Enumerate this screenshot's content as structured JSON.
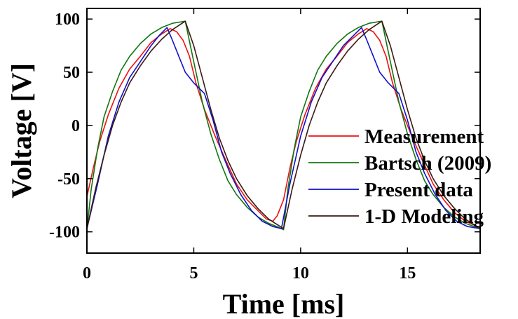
{
  "chart_data": {
    "type": "line",
    "title": "",
    "xlabel": "Time [ms]",
    "ylabel": "Voltage [V]",
    "xlim": [
      0,
      18.4
    ],
    "ylim": [
      -120,
      110
    ],
    "x_ticks": [
      0,
      5,
      10,
      15
    ],
    "y_ticks": [
      -100,
      -50,
      0,
      50,
      100
    ],
    "x_tick_labels": [
      "0",
      "5",
      "10",
      "15"
    ],
    "y_tick_labels": [
      "-100",
      "-50",
      "0",
      "50",
      "100"
    ],
    "grid": false,
    "legend_position": "right",
    "series": [
      {
        "name": "Measurement",
        "color": "#ee1111",
        "points": [
          [
            0,
            -67
          ],
          [
            0.3,
            -40
          ],
          [
            0.6,
            -15
          ],
          [
            1.0,
            10
          ],
          [
            1.5,
            35
          ],
          [
            2.0,
            53
          ],
          [
            2.5,
            65
          ],
          [
            3.0,
            78
          ],
          [
            3.5,
            86
          ],
          [
            3.9,
            91
          ],
          [
            4.2,
            88
          ],
          [
            4.5,
            80
          ],
          [
            4.8,
            65
          ],
          [
            5.1,
            40
          ],
          [
            5.5,
            15
          ],
          [
            6.0,
            -10
          ],
          [
            6.5,
            -33
          ],
          [
            7.0,
            -55
          ],
          [
            7.5,
            -70
          ],
          [
            8.0,
            -80
          ],
          [
            8.4,
            -88
          ],
          [
            8.7,
            -90
          ],
          [
            8.9,
            -85
          ],
          [
            9.2,
            -70
          ],
          [
            9.5,
            -40
          ],
          [
            9.8,
            -15
          ],
          [
            10.2,
            10
          ],
          [
            10.7,
            35
          ],
          [
            11.2,
            53
          ],
          [
            11.7,
            65
          ],
          [
            12.2,
            78
          ],
          [
            12.7,
            86
          ],
          [
            13.1,
            91
          ],
          [
            13.4,
            88
          ],
          [
            13.7,
            80
          ],
          [
            14.0,
            65
          ],
          [
            14.3,
            40
          ],
          [
            14.7,
            15
          ],
          [
            15.2,
            -10
          ],
          [
            15.7,
            -33
          ],
          [
            16.2,
            -55
          ],
          [
            16.7,
            -70
          ],
          [
            17.2,
            -82
          ],
          [
            17.7,
            -90
          ],
          [
            18.4,
            -96
          ]
        ]
      },
      {
        "name": "Bartsch (2009)",
        "color": "#117711",
        "points": [
          [
            0,
            -98
          ],
          [
            0.2,
            -60
          ],
          [
            0.5,
            -22
          ],
          [
            0.8,
            8
          ],
          [
            1.2,
            32
          ],
          [
            1.6,
            52
          ],
          [
            2.0,
            65
          ],
          [
            2.5,
            77
          ],
          [
            3.0,
            86
          ],
          [
            3.5,
            92
          ],
          [
            4.0,
            96
          ],
          [
            4.6,
            98
          ],
          [
            5.0,
            60
          ],
          [
            5.4,
            22
          ],
          [
            5.8,
            -8
          ],
          [
            6.2,
            -32
          ],
          [
            6.6,
            -52
          ],
          [
            7.0,
            -65
          ],
          [
            7.5,
            -77
          ],
          [
            8.0,
            -86
          ],
          [
            8.5,
            -92
          ],
          [
            9.0,
            -96
          ],
          [
            9.2,
            -98
          ],
          [
            9.4,
            -60
          ],
          [
            9.7,
            -22
          ],
          [
            10.0,
            8
          ],
          [
            10.4,
            32
          ],
          [
            10.8,
            52
          ],
          [
            11.2,
            65
          ],
          [
            11.7,
            77
          ],
          [
            12.2,
            86
          ],
          [
            12.7,
            92
          ],
          [
            13.2,
            96
          ],
          [
            13.8,
            98
          ],
          [
            14.2,
            60
          ],
          [
            14.6,
            22
          ],
          [
            15.0,
            -8
          ],
          [
            15.4,
            -32
          ],
          [
            15.8,
            -52
          ],
          [
            16.2,
            -65
          ],
          [
            16.7,
            -77
          ],
          [
            17.2,
            -86
          ],
          [
            17.7,
            -92
          ],
          [
            18.4,
            -97
          ]
        ]
      },
      {
        "name": "Present data",
        "color": "#1111cc",
        "points": [
          [
            0,
            -97
          ],
          [
            0.5,
            -55
          ],
          [
            1.0,
            -10
          ],
          [
            1.5,
            22
          ],
          [
            2.0,
            45
          ],
          [
            2.5,
            60
          ],
          [
            3.0,
            75
          ],
          [
            3.4,
            85
          ],
          [
            3.75,
            92
          ],
          [
            4.0,
            80
          ],
          [
            4.3,
            65
          ],
          [
            4.6,
            50
          ],
          [
            5.0,
            40
          ],
          [
            5.5,
            30
          ],
          [
            5.9,
            5
          ],
          [
            6.3,
            -25
          ],
          [
            6.7,
            -45
          ],
          [
            7.2,
            -65
          ],
          [
            7.7,
            -80
          ],
          [
            8.2,
            -90
          ],
          [
            8.7,
            -95
          ],
          [
            9.1,
            -97
          ],
          [
            9.5,
            -55
          ],
          [
            10.0,
            -10
          ],
          [
            10.5,
            22
          ],
          [
            11.0,
            45
          ],
          [
            11.5,
            60
          ],
          [
            12.0,
            75
          ],
          [
            12.5,
            85
          ],
          [
            12.85,
            92
          ],
          [
            13.1,
            80
          ],
          [
            13.4,
            65
          ],
          [
            13.7,
            50
          ],
          [
            14.1,
            40
          ],
          [
            14.6,
            30
          ],
          [
            15.0,
            5
          ],
          [
            15.4,
            -25
          ],
          [
            15.8,
            -45
          ],
          [
            16.3,
            -65
          ],
          [
            16.8,
            -80
          ],
          [
            17.3,
            -90
          ],
          [
            17.8,
            -95
          ],
          [
            18.4,
            -97
          ]
        ]
      },
      {
        "name": "1-D Modeling",
        "color": "#3a1a12",
        "points": [
          [
            0,
            -97
          ],
          [
            0.4,
            -60
          ],
          [
            0.8,
            -28
          ],
          [
            1.2,
            0
          ],
          [
            1.6,
            22
          ],
          [
            2.0,
            40
          ],
          [
            2.5,
            56
          ],
          [
            3.0,
            70
          ],
          [
            3.5,
            81
          ],
          [
            4.0,
            90
          ],
          [
            4.6,
            98
          ],
          [
            5.0,
            75
          ],
          [
            5.4,
            45
          ],
          [
            5.8,
            15
          ],
          [
            6.2,
            -12
          ],
          [
            6.6,
            -33
          ],
          [
            7.0,
            -50
          ],
          [
            7.5,
            -66
          ],
          [
            8.0,
            -78
          ],
          [
            8.5,
            -88
          ],
          [
            9.2,
            -97
          ],
          [
            9.6,
            -60
          ],
          [
            10.0,
            -28
          ],
          [
            10.4,
            0
          ],
          [
            10.8,
            22
          ],
          [
            11.2,
            40
          ],
          [
            11.7,
            56
          ],
          [
            12.2,
            70
          ],
          [
            12.7,
            81
          ],
          [
            13.2,
            90
          ],
          [
            13.8,
            98
          ],
          [
            14.2,
            75
          ],
          [
            14.6,
            45
          ],
          [
            15.0,
            15
          ],
          [
            15.4,
            -12
          ],
          [
            15.8,
            -33
          ],
          [
            16.2,
            -50
          ],
          [
            16.7,
            -66
          ],
          [
            17.2,
            -78
          ],
          [
            17.7,
            -88
          ],
          [
            18.4,
            -97
          ]
        ]
      }
    ]
  }
}
